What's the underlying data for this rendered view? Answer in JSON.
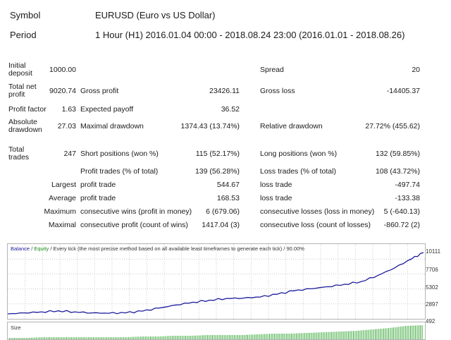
{
  "header": {
    "symbol_label": "Symbol",
    "symbol_value": "EURUSD (Euro vs US Dollar)",
    "period_label": "Period",
    "period_value": "1 Hour (H1) 2016.01.04 00:00 - 2018.08.24 23:00 (2016.01.01 - 2018.08.26)"
  },
  "stats": {
    "initial_deposit_label": "Initial\ndeposit",
    "initial_deposit": "1000.00",
    "spread_label": "Spread",
    "spread": "20",
    "total_net_profit_label": "Total net\nprofit",
    "total_net_profit": "9020.74",
    "gross_profit_label": "Gross profit",
    "gross_profit": "23426.11",
    "gross_loss_label": "Gross loss",
    "gross_loss": "-14405.37",
    "profit_factor_label": "Profit factor",
    "profit_factor": "1.63",
    "expected_payoff_label": "Expected payoff",
    "expected_payoff": "36.52",
    "absolute_drawdown_label": "Absolute\ndrawdown",
    "absolute_drawdown": "27.03",
    "maximal_drawdown_label": "Maximal drawdown",
    "maximal_drawdown": "1374.43 (13.74%)",
    "relative_drawdown_label": "Relative drawdown",
    "relative_drawdown": "27.72% (455.62)",
    "total_trades_label": "Total\ntrades",
    "total_trades": "247",
    "short_positions_label": "Short positions (won %)",
    "short_positions": "115 (52.17%)",
    "long_positions_label": "Long positions (won %)",
    "long_positions": "132 (59.85%)",
    "profit_trades_label": "Profit trades (% of total)",
    "profit_trades": "139 (56.28%)",
    "loss_trades_label": "Loss trades (% of total)",
    "loss_trades": "108 (43.72%)",
    "largest_label": "Largest",
    "largest_profit_label": "profit trade",
    "largest_profit": "544.67",
    "largest_loss_label": "loss trade",
    "largest_loss": "-497.74",
    "average_label": "Average",
    "average_profit_label": "profit trade",
    "average_profit": "168.53",
    "average_loss_label": "loss trade",
    "average_loss": "-133.38",
    "maximum_label": "Maximum",
    "max_consec_wins_label": "consecutive wins (profit in money)",
    "max_consec_wins": "6 (679.06)",
    "max_consec_losses_label": "consecutive losses (loss in money)",
    "max_consec_losses": "5 (-640.13)",
    "maximal_label": "Maximal",
    "maximal_consec_profit_label": "consecutive profit (count of wins)",
    "maximal_consec_profit": "1417.04 (3)",
    "maximal_consec_loss_label": "consecutive loss (count of losses)",
    "maximal_consec_loss": "-860.72 (2)"
  },
  "chart_legend": {
    "balance": "Balance",
    "sep1": " / ",
    "equity": "Equity",
    "rest": " / Every tick (the most precise method based on all available least timeframes to generate each tick) / 90.00%"
  },
  "size_label": "Size",
  "colors": {
    "balance_line": "#1c1c9c",
    "size_bars": "#3aa83a",
    "grid": "#c8c8c8"
  },
  "chart_data": {
    "type": "line",
    "title": "",
    "xlabel": "",
    "ylabel": "",
    "y_ticks": [
      "10111",
      "7706",
      "5302",
      "2897",
      "492"
    ],
    "ylim": [
      492,
      10111
    ],
    "grid": true,
    "x": [
      0,
      10,
      20,
      30,
      40,
      50,
      60,
      70,
      80,
      90,
      100,
      110,
      120,
      130,
      140,
      150,
      160,
      170,
      180,
      190,
      200,
      210,
      220,
      230,
      240,
      247
    ],
    "series": [
      {
        "name": "Balance",
        "values": [
          1000,
          1150,
          1300,
          1450,
          1300,
          1150,
          1100,
          1150,
          1400,
          1850,
          2300,
          2700,
          3000,
          3250,
          3300,
          3450,
          3850,
          4350,
          4650,
          4950,
          5300,
          5700,
          6600,
          7700,
          9000,
          9900
        ]
      }
    ],
    "size_series_trend": [
      0.1,
      0.1,
      0.15,
      0.15,
      0.15,
      0.15,
      0.15,
      0.15,
      0.2,
      0.2,
      0.25,
      0.25,
      0.3,
      0.3,
      0.3,
      0.35,
      0.4,
      0.4,
      0.45,
      0.5,
      0.55,
      0.6,
      0.7,
      0.8,
      0.95,
      1.0
    ]
  }
}
